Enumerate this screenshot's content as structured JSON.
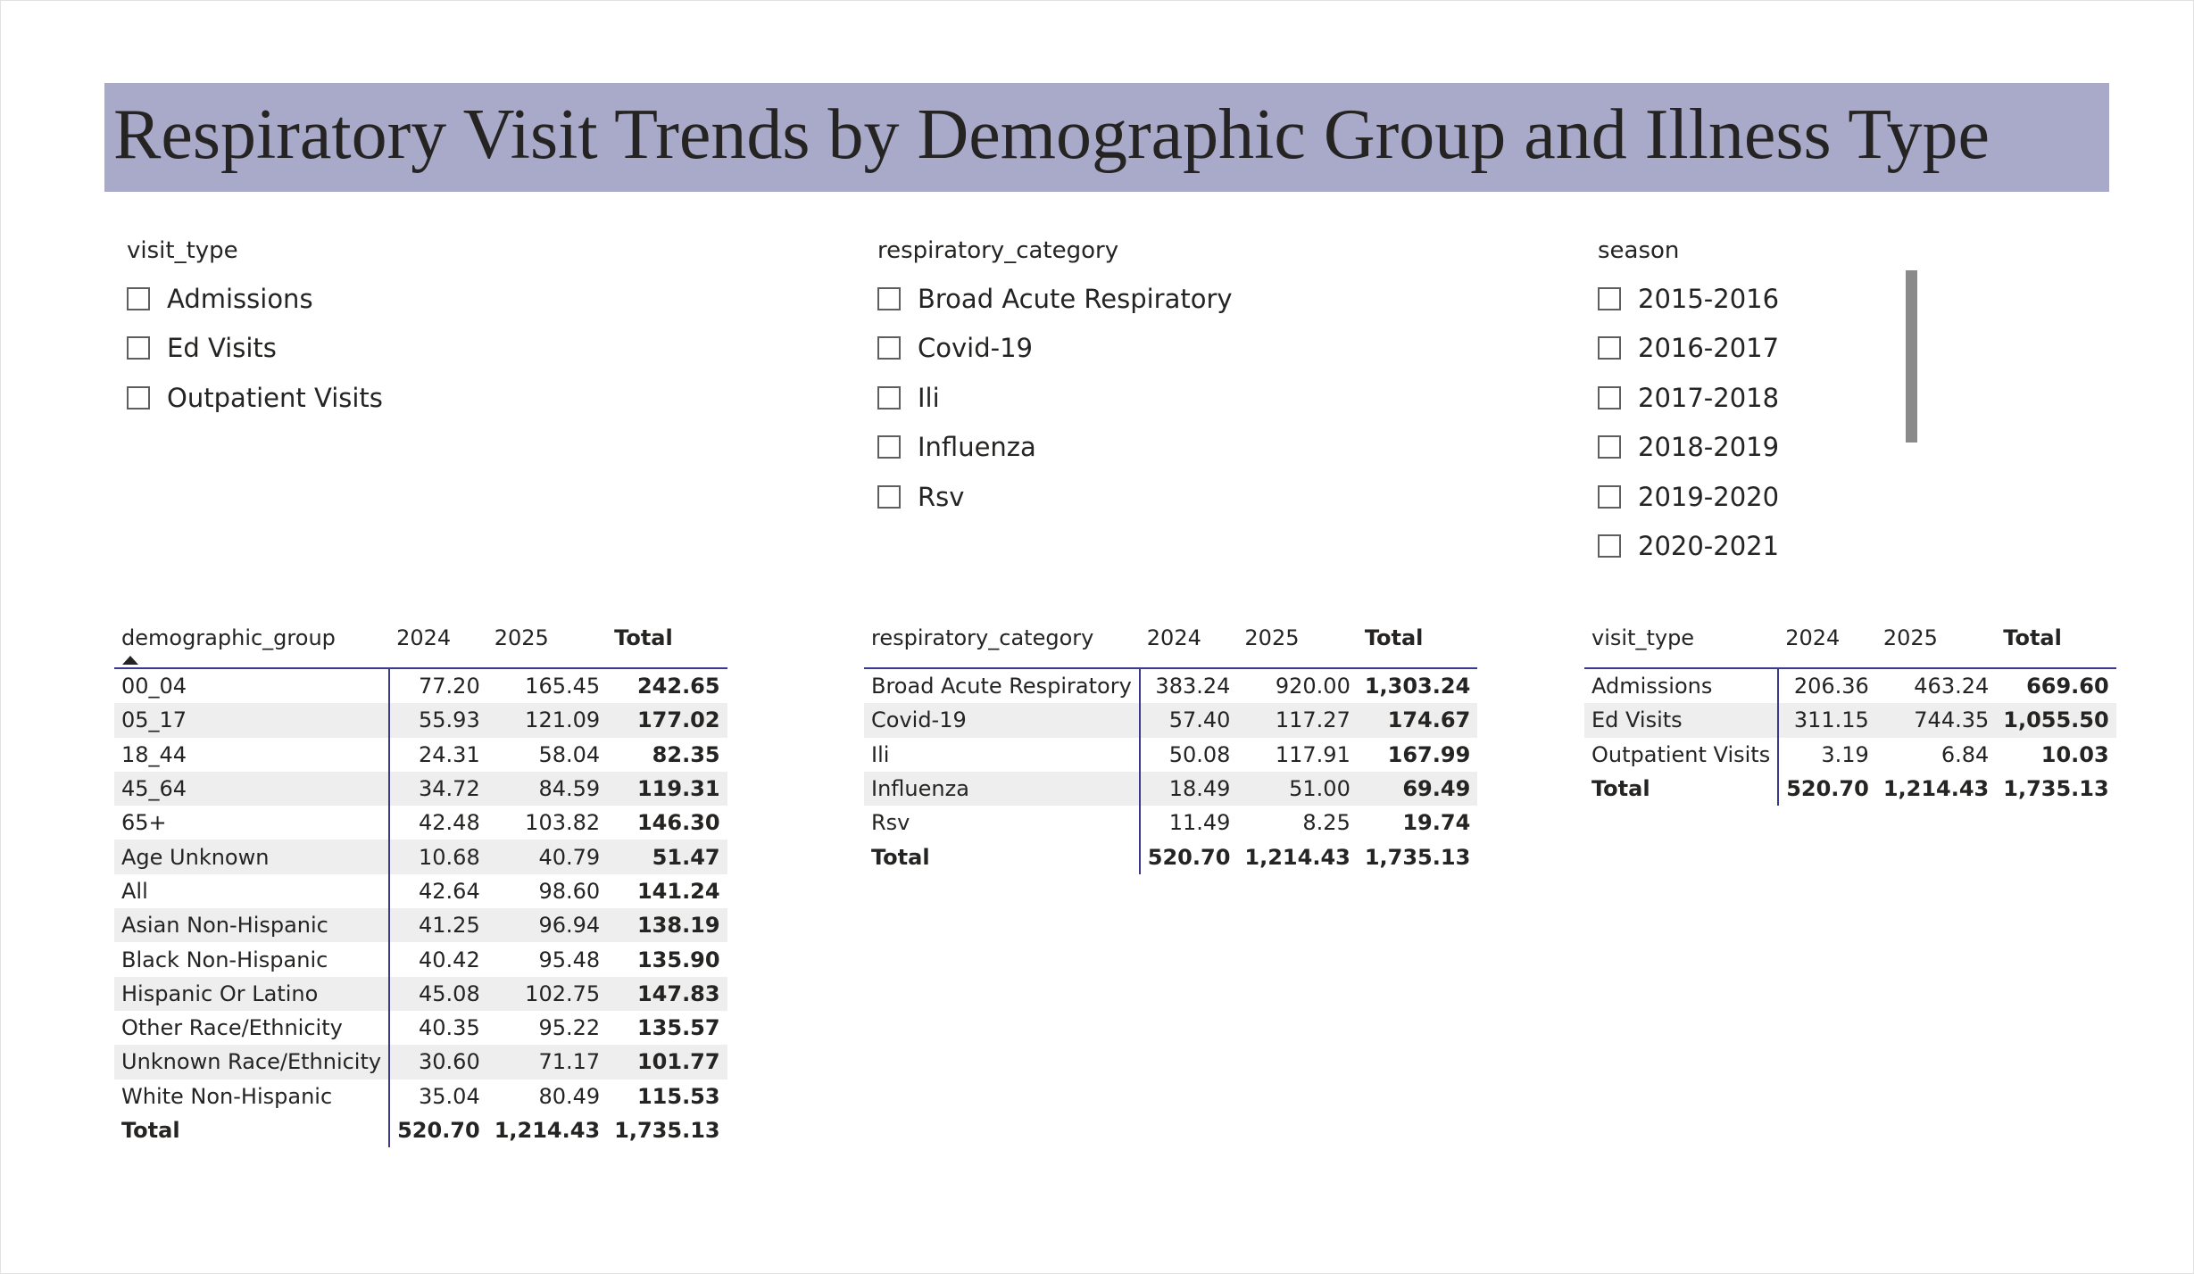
{
  "title": "Respiratory Visit Trends by Demographic Group and Illness Type",
  "colors": {
    "title_bg": "#a9aac9",
    "row_band": "#eeeeee",
    "header_rule": "#3a3a8c"
  },
  "slicers": {
    "visit_type": {
      "header": "visit_type",
      "items": [
        "Admissions",
        "Ed Visits",
        "Outpatient Visits"
      ]
    },
    "respiratory_category": {
      "header": "respiratory_category",
      "items": [
        "Broad Acute Respiratory",
        "Covid-19",
        "Ili",
        "Influenza",
        "Rsv"
      ]
    },
    "season": {
      "header": "season",
      "items": [
        "2015-2016",
        "2016-2017",
        "2017-2018",
        "2018-2019",
        "2019-2020",
        "2020-2021"
      ]
    }
  },
  "tables": {
    "demographic": {
      "headers": [
        "demographic_group",
        "2024",
        "2025",
        "Total"
      ],
      "sort_indicator": "ascending",
      "rows": [
        [
          "00_04",
          "77.20",
          "165.45",
          "242.65"
        ],
        [
          "05_17",
          "55.93",
          "121.09",
          "177.02"
        ],
        [
          "18_44",
          "24.31",
          "58.04",
          "82.35"
        ],
        [
          "45_64",
          "34.72",
          "84.59",
          "119.31"
        ],
        [
          "65+",
          "42.48",
          "103.82",
          "146.30"
        ],
        [
          "Age Unknown",
          "10.68",
          "40.79",
          "51.47"
        ],
        [
          "All",
          "42.64",
          "98.60",
          "141.24"
        ],
        [
          "Asian Non-Hispanic",
          "41.25",
          "96.94",
          "138.19"
        ],
        [
          "Black Non-Hispanic",
          "40.42",
          "95.48",
          "135.90"
        ],
        [
          "Hispanic Or Latino",
          "45.08",
          "102.75",
          "147.83"
        ],
        [
          "Other Race/Ethnicity",
          "40.35",
          "95.22",
          "135.57"
        ],
        [
          "Unknown Race/Ethnicity",
          "30.60",
          "71.17",
          "101.77"
        ],
        [
          "White Non-Hispanic",
          "35.04",
          "80.49",
          "115.53"
        ]
      ],
      "total": [
        "Total",
        "520.70",
        "1,214.43",
        "1,735.13"
      ]
    },
    "respiratory": {
      "headers": [
        "respiratory_category",
        "2024",
        "2025",
        "Total"
      ],
      "rows": [
        [
          "Broad Acute Respiratory",
          "383.24",
          "920.00",
          "1,303.24"
        ],
        [
          "Covid-19",
          "57.40",
          "117.27",
          "174.67"
        ],
        [
          "Ili",
          "50.08",
          "117.91",
          "167.99"
        ],
        [
          "Influenza",
          "18.49",
          "51.00",
          "69.49"
        ],
        [
          "Rsv",
          "11.49",
          "8.25",
          "19.74"
        ]
      ],
      "total": [
        "Total",
        "520.70",
        "1,214.43",
        "1,735.13"
      ]
    },
    "visit": {
      "headers": [
        "visit_type",
        "2024",
        "2025",
        "Total"
      ],
      "rows": [
        [
          "Admissions",
          "206.36",
          "463.24",
          "669.60"
        ],
        [
          "Ed Visits",
          "311.15",
          "744.35",
          "1,055.50"
        ],
        [
          "Outpatient Visits",
          "3.19",
          "6.84",
          "10.03"
        ]
      ],
      "total": [
        "Total",
        "520.70",
        "1,214.43",
        "1,735.13"
      ]
    }
  }
}
